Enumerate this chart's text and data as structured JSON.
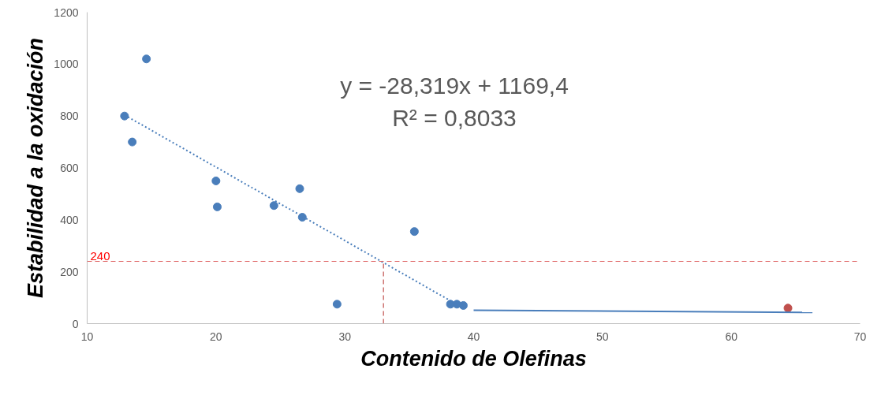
{
  "chart_data": {
    "type": "scatter",
    "xlabel": "Contenido de Olefinas",
    "ylabel": "Estabilidad a la oxidación",
    "annotations": [
      "y = -28,319x + 1169,4",
      "R² = 0,8033"
    ],
    "series": [
      {
        "color": "#4a7ebb",
        "x": [
          12.9,
          13.5,
          14.6,
          20.0,
          20.1,
          24.5,
          26.5,
          26.7,
          29.4,
          35.4,
          38.2,
          38.7,
          39.2
        ],
        "values": [
          800,
          700,
          1020,
          550,
          450,
          455,
          520,
          410,
          75,
          355,
          75,
          75,
          70
        ]
      },
      {
        "color": "#c0504d",
        "x": [
          64.4
        ],
        "values": [
          60
        ]
      },
      {
        "type": "line",
        "color": "#4a7ebb",
        "line_style": "dotted",
        "x": [
          12.9,
          38.2
        ],
        "values": [
          804,
          88
        ]
      },
      {
        "type": "line",
        "color": "#4a7ebb",
        "line_style": "solid",
        "x": [
          40,
          66.3
        ],
        "values": [
          52,
          43
        ]
      }
    ],
    "ref_lines": [
      {
        "axis": "y",
        "value": 240,
        "label": "240",
        "color": "#e06666",
        "line_style": "dashed"
      },
      {
        "axis": "x",
        "value": 33,
        "color": "#c0504d",
        "line_style": "dashed"
      }
    ],
    "xlim": [
      10,
      70
    ],
    "xticks": [
      10,
      20,
      30,
      40,
      50,
      60,
      70
    ],
    "ylim": [
      0,
      1200
    ],
    "yticks": [
      0,
      200,
      400,
      600,
      800,
      1000,
      1200
    ],
    "grid": false
  }
}
